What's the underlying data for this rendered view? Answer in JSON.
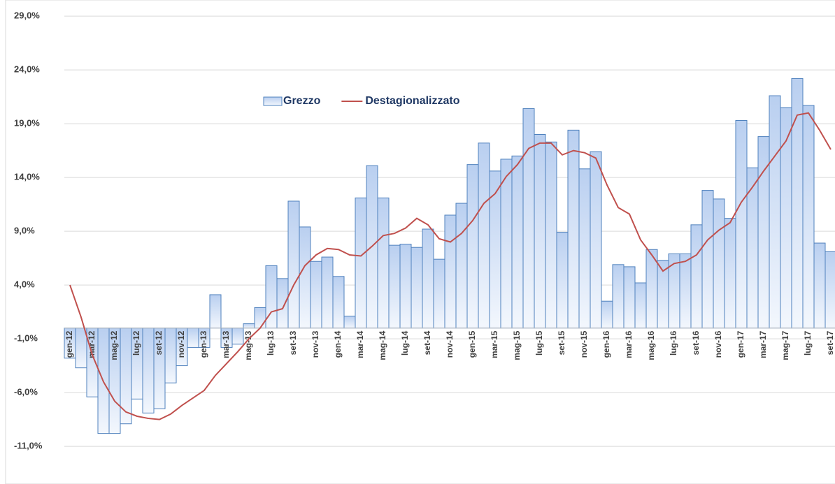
{
  "chart_data": {
    "type": "bar-line",
    "categories": [
      "gen-12",
      null,
      "mar-12",
      null,
      "mag-12",
      null,
      "lug-12",
      null,
      "set-12",
      null,
      "nov-12",
      null,
      "gen-13",
      null,
      "mar-13",
      null,
      "mag-13",
      null,
      "lug-13",
      null,
      "set-13",
      null,
      "nov-13",
      null,
      "gen-14",
      null,
      "mar-14",
      null,
      "mag-14",
      null,
      "lug-14",
      null,
      "set-14",
      null,
      "nov-14",
      null,
      "gen-15",
      null,
      "mar-15",
      null,
      "mag-15",
      null,
      "lug-15",
      null,
      "set-15",
      null,
      "nov-15",
      null,
      "gen-16",
      null,
      "mar-16",
      null,
      "mag-16",
      null,
      "lug-16",
      null,
      "set-16",
      null,
      "nov-16",
      null,
      "gen-17",
      null,
      "mar-17",
      null,
      "mag-17",
      null,
      "lug-17",
      null,
      "set-17"
    ],
    "series": [
      {
        "name": "Grezzo",
        "type": "bar",
        "color": "#4f81bd",
        "values": [
          -2.8,
          -3.7,
          -6.4,
          -9.8,
          -9.8,
          -8.9,
          -6.6,
          -7.9,
          -7.5,
          -5.1,
          -3.5,
          -1.8,
          -1.8,
          3.1,
          -1.8,
          -1.5,
          0.4,
          1.9,
          5.8,
          4.6,
          11.8,
          9.4,
          6.2,
          6.6,
          4.8,
          1.1,
          12.1,
          15.1,
          12.1,
          7.7,
          7.8,
          7.5,
          9.2,
          6.4,
          10.5,
          11.6,
          15.2,
          17.2,
          14.6,
          15.7,
          16.0,
          20.4,
          18.0,
          17.3,
          8.9,
          18.4,
          14.8,
          16.4,
          2.5,
          5.9,
          5.7,
          4.2,
          7.3,
          6.3,
          6.9,
          6.9,
          9.6,
          12.8,
          12.0,
          10.2,
          19.3,
          14.9,
          17.8,
          21.6,
          20.5,
          23.2,
          20.7,
          7.9,
          7.1
        ]
      },
      {
        "name": "Destagionalizzato",
        "type": "line",
        "color": "#c0504d",
        "values": [
          4.0,
          1.0,
          -2.5,
          -5.0,
          -6.8,
          -7.8,
          -8.2,
          -8.4,
          -8.5,
          -8.0,
          -7.2,
          -6.5,
          -5.8,
          -4.4,
          -3.3,
          -2.2,
          -1.0,
          0.0,
          1.5,
          1.8,
          4.0,
          5.8,
          6.8,
          7.4,
          7.3,
          6.8,
          6.7,
          7.6,
          8.6,
          8.8,
          9.3,
          10.2,
          9.6,
          8.3,
          8.0,
          8.8,
          10.0,
          11.6,
          12.5,
          14.1,
          15.2,
          16.7,
          17.2,
          17.2,
          16.1,
          16.5,
          16.3,
          15.8,
          13.3,
          11.2,
          10.6,
          8.2,
          6.8,
          5.3,
          6.0,
          6.2,
          6.8,
          8.2,
          9.1,
          9.8,
          11.7,
          13.1,
          14.6,
          16.0,
          17.4,
          19.8,
          20.0,
          18.4,
          16.6
        ]
      }
    ],
    "ylim": [
      -14.5,
      30.5
    ],
    "yticks": [
      {
        "value": -11,
        "label": "-11,0%"
      },
      {
        "value": -6,
        "label": "-6,0%"
      },
      {
        "value": -1,
        "label": "-1,0%"
      },
      {
        "value": 4,
        "label": "4,0%"
      },
      {
        "value": 9,
        "label": "9,0%"
      },
      {
        "value": 14,
        "label": "14,0%"
      },
      {
        "value": 19,
        "label": "19,0%"
      },
      {
        "value": 24,
        "label": "24,0%"
      },
      {
        "value": 29,
        "label": "29,0%"
      }
    ],
    "grid": true,
    "legend": "top"
  }
}
